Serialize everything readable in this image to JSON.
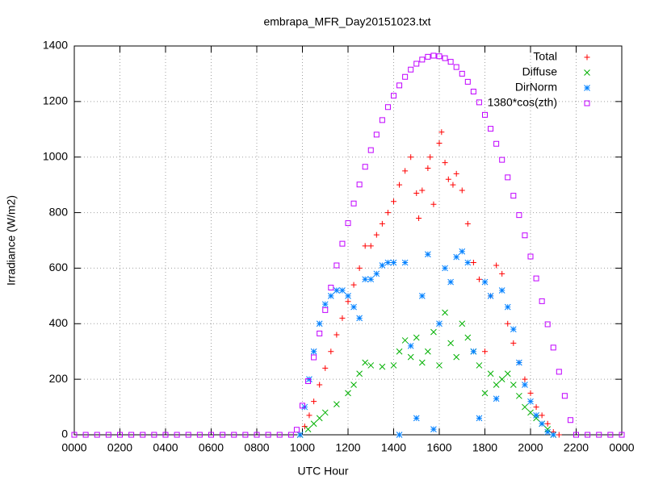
{
  "chart_data": {
    "type": "scatter",
    "title": "embrapa_MFR_Day20151023.txt",
    "x_label": "UTC Hour",
    "y_label": "Irradiance (W/m2)",
    "xlim": [
      0,
      24
    ],
    "ylim": [
      0,
      1400
    ],
    "grid": true,
    "legend": "top-right",
    "xticks": [
      {
        "value": 0,
        "label": "0000"
      },
      {
        "value": 2,
        "label": "0200"
      },
      {
        "value": 4,
        "label": "0400"
      },
      {
        "value": 6,
        "label": "0600"
      },
      {
        "value": 8,
        "label": "0800"
      },
      {
        "value": 10,
        "label": "1000"
      },
      {
        "value": 12,
        "label": "1200"
      },
      {
        "value": 14,
        "label": "1400"
      },
      {
        "value": 16,
        "label": "1600"
      },
      {
        "value": 18,
        "label": "1800"
      },
      {
        "value": 20,
        "label": "2000"
      },
      {
        "value": 22,
        "label": "2200"
      },
      {
        "value": 24,
        "label": "0000"
      }
    ],
    "yticks": [
      0,
      200,
      400,
      600,
      800,
      1000,
      1200,
      1400
    ],
    "series": [
      {
        "name": "Total",
        "color": "#ff0000",
        "marker": "plus",
        "x": [
          9.9,
          10.1,
          10.3,
          10.5,
          10.75,
          11.0,
          11.25,
          11.5,
          11.75,
          12.0,
          12.25,
          12.5,
          12.75,
          13.0,
          13.25,
          13.5,
          13.75,
          14.0,
          14.25,
          14.5,
          14.75,
          15.0,
          15.1,
          15.25,
          15.5,
          15.6,
          15.75,
          16.0,
          16.1,
          16.25,
          16.4,
          16.6,
          16.75,
          17.0,
          17.25,
          17.5,
          17.75,
          18.0,
          18.25,
          18.5,
          18.75,
          19.0,
          19.25,
          19.5,
          19.75,
          20.0,
          20.25,
          20.5,
          20.75,
          21.0,
          21.25
        ],
        "values": [
          0,
          30,
          70,
          120,
          180,
          240,
          300,
          360,
          420,
          480,
          540,
          600,
          680,
          680,
          720,
          760,
          800,
          840,
          900,
          950,
          1000,
          870,
          780,
          880,
          960,
          1000,
          830,
          1050,
          1090,
          980,
          920,
          900,
          940,
          880,
          760,
          620,
          560,
          300,
          500,
          610,
          580,
          400,
          330,
          260,
          200,
          150,
          100,
          70,
          40,
          10,
          0
        ]
      },
      {
        "name": "Diffuse",
        "color": "#00b000",
        "marker": "cross",
        "x": [
          9.9,
          10.25,
          10.5,
          10.75,
          11.0,
          11.5,
          12.0,
          12.25,
          12.5,
          12.75,
          13.0,
          13.5,
          14.0,
          14.25,
          14.5,
          14.75,
          15.0,
          15.25,
          15.5,
          15.75,
          16.0,
          16.25,
          16.5,
          16.75,
          17.0,
          17.25,
          17.5,
          17.75,
          18.0,
          18.25,
          18.5,
          18.75,
          19.0,
          19.25,
          19.5,
          19.75,
          20.0,
          20.25,
          20.5,
          20.75,
          21.0
        ],
        "values": [
          0,
          20,
          40,
          60,
          80,
          110,
          150,
          180,
          220,
          260,
          250,
          245,
          250,
          300,
          340,
          280,
          350,
          260,
          300,
          370,
          250,
          440,
          330,
          280,
          400,
          350,
          300,
          250,
          150,
          220,
          180,
          200,
          220,
          180,
          140,
          100,
          80,
          60,
          40,
          20,
          0
        ]
      },
      {
        "name": "DirNorm",
        "color": "#0080ff",
        "marker": "star",
        "x": [
          9.9,
          10.1,
          10.3,
          10.5,
          10.75,
          11.0,
          11.25,
          11.5,
          11.75,
          12.0,
          12.25,
          12.5,
          12.75,
          13.0,
          13.25,
          13.5,
          13.75,
          14.0,
          14.25,
          14.5,
          14.75,
          15.0,
          15.25,
          15.5,
          15.75,
          16.0,
          16.25,
          16.5,
          16.75,
          17.0,
          17.25,
          17.5,
          17.75,
          18.0,
          18.25,
          18.5,
          18.75,
          19.0,
          19.25,
          19.5,
          19.75,
          20.0,
          20.25,
          20.5,
          20.75,
          21.0
        ],
        "values": [
          0,
          100,
          200,
          300,
          400,
          470,
          500,
          520,
          520,
          500,
          460,
          420,
          560,
          560,
          580,
          610,
          620,
          620,
          0,
          620,
          320,
          60,
          500,
          650,
          20,
          400,
          600,
          550,
          640,
          660,
          620,
          300,
          60,
          550,
          500,
          130,
          520,
          460,
          380,
          260,
          180,
          120,
          70,
          40,
          10,
          0
        ]
      },
      {
        "name": "1380*cos(zth)",
        "color": "#c000ff",
        "marker": "square",
        "x": [
          0,
          0.5,
          1,
          1.5,
          2,
          2.5,
          3,
          3.5,
          4,
          4.5,
          5,
          5.5,
          6,
          6.5,
          7,
          7.5,
          8,
          8.5,
          9,
          9.5,
          9.75,
          10.0,
          10.25,
          10.5,
          10.75,
          11.0,
          11.25,
          11.5,
          11.75,
          12.0,
          12.25,
          12.5,
          12.75,
          13.0,
          13.25,
          13.5,
          13.75,
          14.0,
          14.25,
          14.5,
          14.75,
          15.0,
          15.25,
          15.5,
          15.75,
          16.0,
          16.25,
          16.5,
          16.75,
          17.0,
          17.25,
          17.5,
          17.75,
          18.0,
          18.25,
          18.5,
          18.75,
          19.0,
          19.25,
          19.5,
          19.75,
          20.0,
          20.25,
          20.5,
          20.75,
          21.0,
          21.25,
          21.5,
          21.75,
          22.0,
          22.5,
          23.0,
          23.5,
          24.0
        ],
        "values": [
          0,
          0,
          0,
          0,
          0,
          0,
          0,
          0,
          0,
          0,
          0,
          0,
          0,
          0,
          0,
          0,
          0,
          0,
          0,
          0,
          18,
          105,
          193,
          279,
          365,
          449,
          530,
          610,
          688,
          762,
          833,
          901,
          965,
          1025,
          1081,
          1133,
          1180,
          1221,
          1258,
          1289,
          1315,
          1336,
          1351,
          1361,
          1365,
          1363,
          1356,
          1343,
          1324,
          1300,
          1271,
          1236,
          1197,
          1152,
          1102,
          1048,
          990,
          927,
          861,
          791,
          718,
          642,
          563,
          481,
          398,
          314,
          227,
          140,
          53,
          0,
          0,
          0,
          0,
          0
        ]
      }
    ]
  }
}
